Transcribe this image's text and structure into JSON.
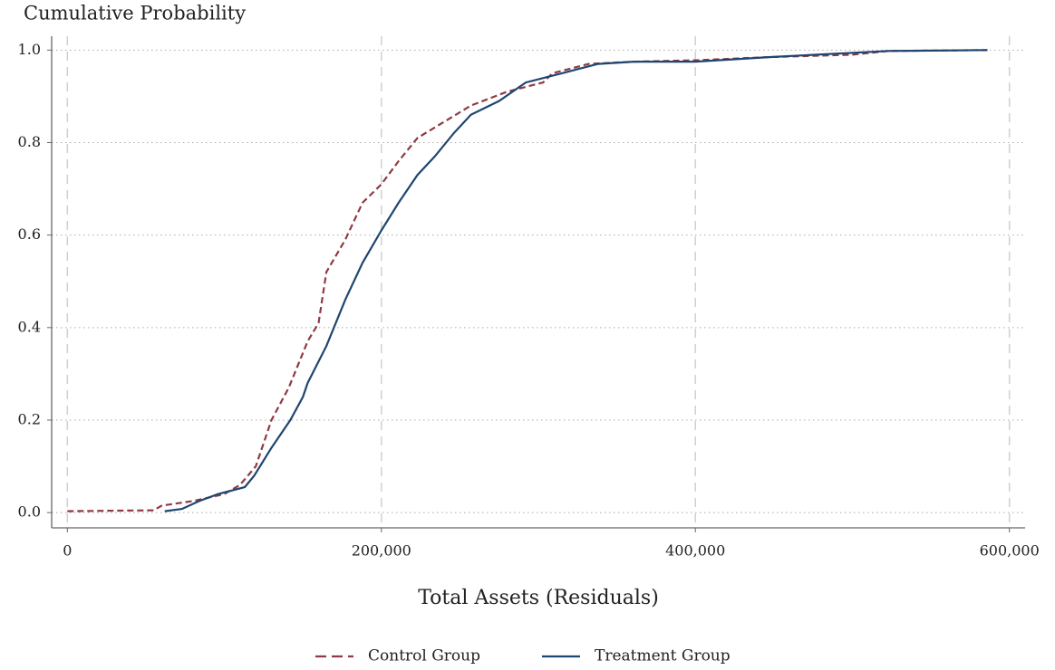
{
  "chart_data": {
    "type": "line",
    "title": "Cumulative Probability",
    "x_label": "Total Assets (Residuals)",
    "xlim": [
      -10000,
      610000
    ],
    "ylim": [
      -0.033,
      1.03
    ],
    "xticks": [
      0,
      {
        "value": 200000,
        "label": "200,000"
      },
      {
        "value": 400000,
        "label": "400,000"
      },
      {
        "value": 600000,
        "label": "600,000"
      }
    ],
    "yticks": [
      {
        "value": 0,
        "label": "0.0"
      },
      0.2,
      0.4,
      0.6,
      0.8,
      {
        "value": 1,
        "label": "1.0"
      }
    ],
    "grid": true,
    "legend": "bottom",
    "series": [
      {
        "name": "Control Group",
        "color": "#8f3a44",
        "dash": true,
        "x": [
          0,
          55000,
          60000,
          80000,
          100000,
          110000,
          120000,
          130000,
          141000,
          153000,
          160000,
          165000,
          177000,
          188000,
          200000,
          211000,
          223000,
          240000,
          257000,
          280000,
          303000,
          309000,
          332000,
          361000,
          400000,
          448000,
          500000,
          523000,
          586000
        ],
        "values": [
          0.003,
          0.005,
          0.015,
          0.025,
          0.04,
          0.06,
          0.1,
          0.2,
          0.27,
          0.37,
          0.41,
          0.52,
          0.59,
          0.67,
          0.71,
          0.76,
          0.81,
          0.845,
          0.88,
          0.91,
          0.93,
          0.95,
          0.97,
          0.975,
          0.978,
          0.985,
          0.99,
          0.998,
          1.0
        ]
      },
      {
        "name": "Treatment Group",
        "color": "#1f4670",
        "dash": false,
        "x": [
          62000,
          73000,
          84000,
          96000,
          113000,
          119000,
          130000,
          142000,
          150000,
          153000,
          165000,
          177000,
          188000,
          200000,
          211000,
          223000,
          234000,
          246000,
          257000,
          275000,
          292000,
          315000,
          338000,
          361000,
          400000,
          448000,
          523000,
          586000
        ],
        "values": [
          0.003,
          0.008,
          0.025,
          0.04,
          0.055,
          0.08,
          0.14,
          0.2,
          0.25,
          0.28,
          0.36,
          0.46,
          0.54,
          0.61,
          0.67,
          0.73,
          0.77,
          0.82,
          0.86,
          0.89,
          0.93,
          0.95,
          0.97,
          0.975,
          0.975,
          0.985,
          0.998,
          1.0
        ]
      }
    ]
  }
}
